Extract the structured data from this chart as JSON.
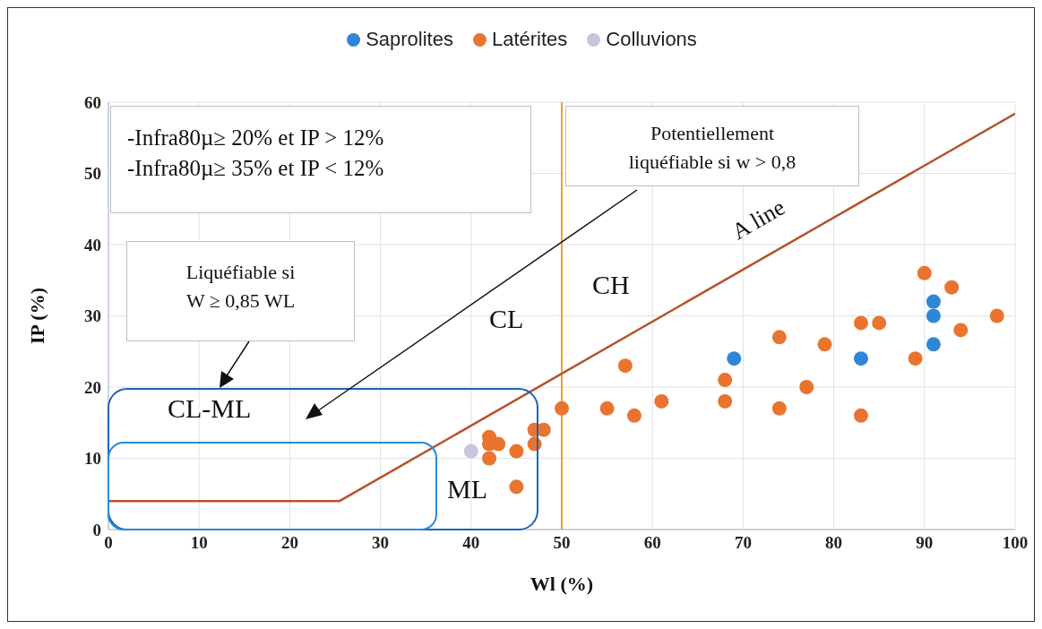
{
  "chart_data": {
    "type": "scatter",
    "xlabel": "Wl (%)",
    "ylabel": "IP (%)",
    "xlim": [
      0,
      100
    ],
    "ylim": [
      0,
      60
    ],
    "xticks": [
      0,
      10,
      20,
      30,
      40,
      50,
      60,
      70,
      80,
      90,
      100
    ],
    "yticks": [
      0,
      10,
      20,
      30,
      40,
      50,
      60
    ],
    "grid": true,
    "legend": "top",
    "marker": "circle",
    "series": [
      {
        "name": "Saprolites",
        "color": "#2e86d6",
        "x": [
          69,
          83,
          91,
          91,
          91
        ],
        "values": [
          24,
          24,
          32,
          30,
          26
        ]
      },
      {
        "name": "Latérites",
        "color": "#e9742f",
        "x": [
          42,
          42,
          43,
          42,
          45,
          45,
          47,
          47,
          48,
          50,
          55,
          57,
          58,
          61,
          68,
          68,
          74,
          74,
          77,
          79,
          83,
          83,
          85,
          89,
          90,
          93,
          94,
          98
        ],
        "values": [
          13,
          12,
          12,
          10,
          11,
          6,
          14,
          12,
          14,
          17,
          17,
          23,
          16,
          18,
          21,
          18,
          27,
          17,
          20,
          26,
          29,
          16,
          29,
          24,
          36,
          34,
          28,
          30
        ]
      },
      {
        "name": "Colluvions",
        "color": "#c7c4dc",
        "x": [
          40
        ],
        "values": [
          11
        ]
      },
      {
        "name": "A line",
        "type": "line",
        "marker": "none",
        "color": "#b5532a",
        "x": [
          0,
          25.5,
          100
        ],
        "values": [
          4,
          4,
          58.4
        ]
      }
    ],
    "ref_lines": [
      {
        "axis": "x",
        "value": 50,
        "color": "#f0a030"
      }
    ],
    "annotations": [
      "-Infra80µ≥ 20% et IP > 12%",
      "-Infra80µ≥ 35% et IP < 12%",
      "Potentiellement liquéfiable si w > 0,8",
      "Liquéfiable si W ≥ 0,85 WL",
      "CL-ML",
      "ML",
      "CL",
      "CH"
    ]
  }
}
